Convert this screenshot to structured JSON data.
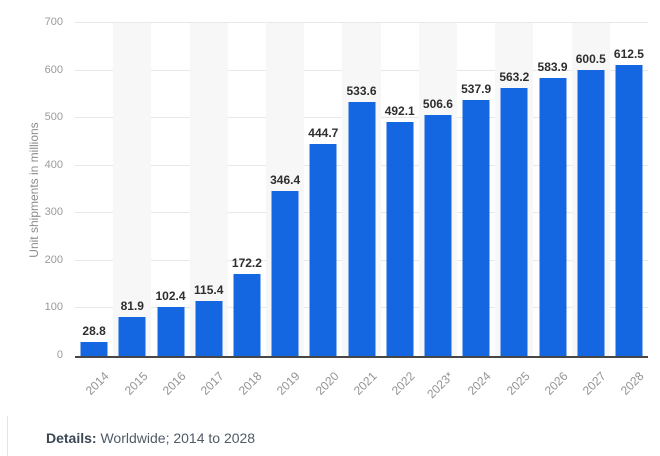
{
  "chart_data": {
    "type": "bar",
    "title": "",
    "xlabel": "",
    "ylabel": "Unit shipments in millions",
    "categories": [
      "2014",
      "2015",
      "2016",
      "2017",
      "2018",
      "2019",
      "2020",
      "2021",
      "2022",
      "2023*",
      "2024",
      "2025",
      "2026",
      "2027",
      "2028"
    ],
    "values": [
      28.8,
      81.9,
      102.4,
      115.4,
      172.2,
      346.4,
      444.7,
      533.6,
      492.1,
      506.6,
      537.9,
      563.2,
      583.9,
      600.5,
      612.5
    ],
    "value_labels": [
      "28.8",
      "81.9",
      "102.4",
      "115.4",
      "172.2",
      "346.4",
      "444.7",
      "533.6",
      "492.1",
      "506.6",
      "537.9",
      "563.2",
      "583.9",
      "600.5",
      "612.5"
    ],
    "ylim": [
      0,
      700
    ],
    "yticks": [
      0,
      100,
      200,
      300,
      400,
      500,
      600,
      700
    ],
    "grid": "horizontal",
    "legend": "none",
    "bar_color": "#1467e0",
    "stripe_color": "#f7f7f7"
  },
  "details": {
    "label": "Details:",
    "text": " Worldwide; 2014 to 2028"
  },
  "colors": {
    "bar": "#1467e0",
    "value_label": "#2e2e2e",
    "tick_label": "#9a9a9a",
    "gridline": "#e8e8e8",
    "axis_line": "#474747",
    "details_label": "#3b4754",
    "details_text": "#4f5b66"
  }
}
